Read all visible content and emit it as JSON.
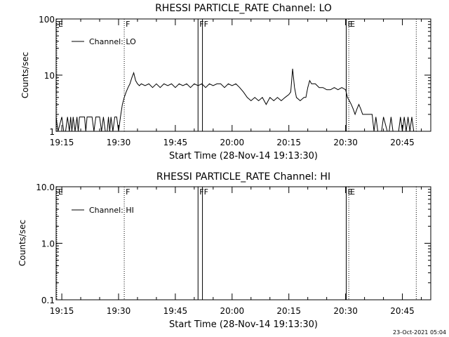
{
  "footer": {
    "timestamp": "23-Oct-2021 05:04"
  },
  "chart_data": [
    {
      "type": "line",
      "title": "RHESSI PARTICLE_RATE Channel: LO",
      "xlabel": "Start Time (28-Nov-14 19:13:30)",
      "ylabel": "Counts/sec",
      "yscale": "log",
      "xlim": [
        "19:13:30",
        "20:52:30"
      ],
      "ylim": [
        1,
        100
      ],
      "x_ticks": [
        "19:15",
        "19:30",
        "19:45",
        "20:00",
        "20:15",
        "20:30",
        "20:45"
      ],
      "y_ticks": [
        "1",
        "10",
        "100"
      ],
      "legend": {
        "entries": [
          "Channel: LO"
        ],
        "placement": "top-left"
      },
      "markers": [
        {
          "label": "E",
          "time": "19:13:30",
          "style": "dotted"
        },
        {
          "label": "F",
          "time": "19:31:30",
          "style": "dotted"
        },
        {
          "label": "F",
          "time": "19:51:00",
          "style": "solid"
        },
        {
          "label": "F",
          "time": "19:52:10",
          "style": "solid"
        },
        {
          "label": "E",
          "time": "20:30:10",
          "style": "solid"
        },
        {
          "label": "E",
          "time": "20:30:50",
          "style": "dotted"
        },
        {
          "label": "",
          "time": "20:48:40",
          "style": "dotted"
        }
      ],
      "series": [
        {
          "name": "Channel: LO",
          "x": [
            "19:13:30",
            "19:14:00",
            "19:15:00",
            "19:15:30",
            "19:16:00",
            "19:16:30",
            "19:17:00",
            "19:17:20",
            "19:17:40",
            "19:18:00",
            "19:18:30",
            "19:19:00",
            "19:19:20",
            "19:19:40",
            "19:20:00",
            "19:21:00",
            "19:21:20",
            "19:21:40",
            "19:22:00",
            "19:23:00",
            "19:23:30",
            "19:24:00",
            "19:25:00",
            "19:25:30",
            "19:26:00",
            "19:26:30",
            "19:27:00",
            "19:27:20",
            "19:27:40",
            "19:28:00",
            "19:28:30",
            "19:29:00",
            "19:29:30",
            "19:30:00",
            "19:30:30",
            "19:31:00",
            "19:31:30",
            "19:32:00",
            "19:32:30",
            "19:33:00",
            "19:33:30",
            "19:34:00",
            "19:34:30",
            "19:35:00",
            "19:35:30",
            "19:36:00",
            "19:37:00",
            "19:38:00",
            "19:39:00",
            "19:40:00",
            "19:41:00",
            "19:42:00",
            "19:43:00",
            "19:44:00",
            "19:45:00",
            "19:46:00",
            "19:47:00",
            "19:48:00",
            "19:49:00",
            "19:50:00",
            "19:51:00",
            "19:52:00",
            "19:53:00",
            "19:54:00",
            "19:55:00",
            "19:56:00",
            "19:57:00",
            "19:58:00",
            "19:59:00",
            "20:00:00",
            "20:01:00",
            "20:02:00",
            "20:03:00",
            "20:04:00",
            "20:05:00",
            "20:06:00",
            "20:07:00",
            "20:08:00",
            "20:09:00",
            "20:10:00",
            "20:11:00",
            "20:12:00",
            "20:13:00",
            "20:14:00",
            "20:15:00",
            "20:15:30",
            "20:16:00",
            "20:16:30",
            "20:17:00",
            "20:18:00",
            "20:19:00",
            "20:19:30",
            "20:20:00",
            "20:20:30",
            "20:21:00",
            "20:22:00",
            "20:23:00",
            "20:24:00",
            "20:25:00",
            "20:26:00",
            "20:27:00",
            "20:28:00",
            "20:29:00",
            "20:30:00",
            "20:30:30",
            "20:31:00",
            "20:31:30",
            "20:32:00",
            "20:32:30",
            "20:33:00",
            "20:33:30",
            "20:34:00",
            "20:34:30",
            "20:35:00",
            "20:35:30",
            "20:36:00",
            "20:36:30",
            "20:37:00",
            "20:37:30",
            "20:38:00",
            "20:38:30",
            "20:39:00",
            "20:39:30",
            "20:40:00",
            "20:41:00",
            "20:41:30",
            "20:42:00",
            "20:42:30",
            "20:43:00",
            "20:44:00",
            "20:44:30",
            "20:45:00",
            "20:45:30",
            "20:46:00",
            "20:46:30",
            "20:47:00",
            "20:47:30",
            "20:48:00"
          ],
          "values": [
            1.8,
            1,
            1.8,
            1,
            1,
            1.8,
            1,
            1.8,
            1,
            1.8,
            1,
            1.8,
            1,
            1.8,
            1.8,
            1.8,
            1,
            1.8,
            1.8,
            1.8,
            1,
            1.8,
            1.8,
            1,
            1.8,
            1,
            1,
            1.8,
            1,
            1.8,
            1,
            1.8,
            1.8,
            1,
            1.8,
            3,
            4,
            5,
            6,
            7,
            9,
            11,
            8,
            7,
            6.5,
            7,
            6.5,
            7,
            6,
            7,
            6,
            7,
            6.5,
            7,
            6,
            7,
            6.5,
            7,
            6,
            7,
            6.5,
            7,
            6,
            7,
            6.5,
            7,
            7,
            6,
            7,
            6.5,
            7,
            6,
            5,
            4,
            3.5,
            4,
            3.5,
            4,
            3,
            4,
            3.5,
            4,
            3.5,
            4,
            4.5,
            5,
            13,
            6,
            4,
            3.5,
            4,
            4,
            6,
            8,
            7,
            7,
            6,
            6,
            5.5,
            5.5,
            6,
            5.5,
            6,
            5.5,
            4,
            3.5,
            3,
            2.5,
            2,
            2.5,
            3,
            2.5,
            2,
            2,
            2,
            2,
            2,
            2,
            1,
            1.8,
            1,
            1,
            1,
            1.8,
            1,
            1,
            1.8,
            1,
            1,
            1,
            1.8,
            1,
            1.8,
            1,
            1.8,
            1,
            1.8,
            1
          ]
        }
      ]
    },
    {
      "type": "line",
      "title": "RHESSI PARTICLE_RATE Channel: HI",
      "xlabel": "Start Time (28-Nov-14 19:13:30)",
      "ylabel": "Counts/sec",
      "yscale": "log",
      "xlim": [
        "19:13:30",
        "20:52:30"
      ],
      "ylim": [
        0.1,
        10
      ],
      "x_ticks": [
        "19:15",
        "19:30",
        "19:45",
        "20:00",
        "20:15",
        "20:30",
        "20:45"
      ],
      "y_ticks": [
        "0.1",
        "1.0",
        "10.0"
      ],
      "legend": {
        "entries": [
          "Channel: HI"
        ],
        "placement": "top-left"
      },
      "markers": [
        {
          "label": "E",
          "time": "19:13:30",
          "style": "dotted"
        },
        {
          "label": "F",
          "time": "19:31:30",
          "style": "dotted"
        },
        {
          "label": "F",
          "time": "19:51:00",
          "style": "solid"
        },
        {
          "label": "F",
          "time": "19:52:10",
          "style": "solid"
        },
        {
          "label": "E",
          "time": "20:30:10",
          "style": "solid"
        },
        {
          "label": "E",
          "time": "20:30:50",
          "style": "dotted"
        },
        {
          "label": "",
          "time": "20:48:40",
          "style": "dotted"
        }
      ],
      "series": [
        {
          "name": "Channel: HI",
          "x": [],
          "values": []
        }
      ]
    }
  ]
}
